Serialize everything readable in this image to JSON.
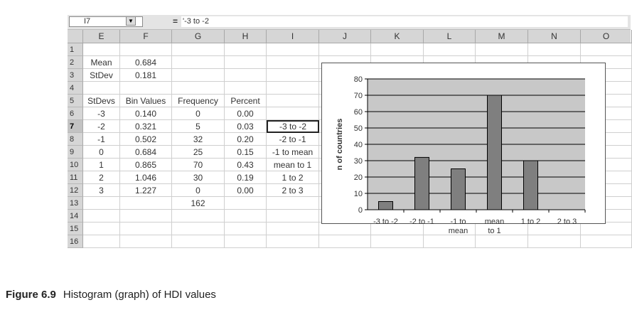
{
  "formula_bar": {
    "name_box": "I7",
    "equals": "=",
    "formula": "'-3 to -2"
  },
  "columns": [
    "E",
    "F",
    "G",
    "H",
    "I",
    "J",
    "K",
    "L",
    "M",
    "N",
    "O"
  ],
  "rows": [
    "1",
    "2",
    "3",
    "4",
    "5",
    "6",
    "7",
    "8",
    "9",
    "10",
    "11",
    "12",
    "13",
    "14",
    "15",
    "16"
  ],
  "active_row": "7",
  "cells": [
    {
      "r": 1,
      "c": 0,
      "v": "Mean"
    },
    {
      "r": 1,
      "c": 1,
      "v": "0.684"
    },
    {
      "r": 2,
      "c": 0,
      "v": "StDev"
    },
    {
      "r": 2,
      "c": 1,
      "v": "0.181"
    },
    {
      "r": 4,
      "c": 0,
      "v": "StDevs"
    },
    {
      "r": 4,
      "c": 1,
      "v": "Bin Values"
    },
    {
      "r": 4,
      "c": 2,
      "v": "Frequency"
    },
    {
      "r": 4,
      "c": 3,
      "v": "Percent"
    },
    {
      "r": 5,
      "c": 0,
      "v": "-3"
    },
    {
      "r": 5,
      "c": 1,
      "v": "0.140"
    },
    {
      "r": 5,
      "c": 2,
      "v": "0"
    },
    {
      "r": 5,
      "c": 3,
      "v": "0.00"
    },
    {
      "r": 6,
      "c": 0,
      "v": "-2"
    },
    {
      "r": 6,
      "c": 1,
      "v": "0.321"
    },
    {
      "r": 6,
      "c": 2,
      "v": "5"
    },
    {
      "r": 6,
      "c": 3,
      "v": "0.03"
    },
    {
      "r": 6,
      "c": 4,
      "v": "-3 to -2"
    },
    {
      "r": 7,
      "c": 0,
      "v": "-1"
    },
    {
      "r": 7,
      "c": 1,
      "v": "0.502"
    },
    {
      "r": 7,
      "c": 2,
      "v": "32"
    },
    {
      "r": 7,
      "c": 3,
      "v": "0.20"
    },
    {
      "r": 7,
      "c": 4,
      "v": "-2 to -1"
    },
    {
      "r": 8,
      "c": 0,
      "v": "0"
    },
    {
      "r": 8,
      "c": 1,
      "v": "0.684"
    },
    {
      "r": 8,
      "c": 2,
      "v": "25"
    },
    {
      "r": 8,
      "c": 3,
      "v": "0.15"
    },
    {
      "r": 8,
      "c": 4,
      "v": "-1 to mean"
    },
    {
      "r": 9,
      "c": 0,
      "v": "1"
    },
    {
      "r": 9,
      "c": 1,
      "v": "0.865"
    },
    {
      "r": 9,
      "c": 2,
      "v": "70"
    },
    {
      "r": 9,
      "c": 3,
      "v": "0.43"
    },
    {
      "r": 9,
      "c": 4,
      "v": "mean to 1"
    },
    {
      "r": 10,
      "c": 0,
      "v": "2"
    },
    {
      "r": 10,
      "c": 1,
      "v": "1.046"
    },
    {
      "r": 10,
      "c": 2,
      "v": "30"
    },
    {
      "r": 10,
      "c": 3,
      "v": "0.19"
    },
    {
      "r": 10,
      "c": 4,
      "v": "1 to 2"
    },
    {
      "r": 11,
      "c": 0,
      "v": "3"
    },
    {
      "r": 11,
      "c": 1,
      "v": "1.227"
    },
    {
      "r": 11,
      "c": 2,
      "v": "0"
    },
    {
      "r": 11,
      "c": 3,
      "v": "0.00"
    },
    {
      "r": 11,
      "c": 4,
      "v": "2 to 3"
    },
    {
      "r": 12,
      "c": 2,
      "v": "162"
    }
  ],
  "selected_cell": {
    "r": 6,
    "c": 4
  },
  "chart_data": {
    "type": "bar",
    "categories": [
      "-3 to -2",
      "-2 to -1",
      "-1 to mean",
      "mean to 1",
      "1 to 2",
      "2 to 3"
    ],
    "category_lines": [
      [
        "-3 to -2"
      ],
      [
        "-2 to -1"
      ],
      [
        "-1 to",
        "mean"
      ],
      [
        "mean",
        "to 1"
      ],
      [
        "1 to 2"
      ],
      [
        "2 to 3"
      ]
    ],
    "values": [
      5,
      32,
      25,
      70,
      30,
      0
    ],
    "ylabel": "n of countries",
    "ylim": [
      0,
      80
    ],
    "yticks": [
      0,
      10,
      20,
      30,
      40,
      50,
      60,
      70,
      80
    ],
    "grid": true,
    "plot_color": "#c8c8c8",
    "bar_color": "#7f7f7f"
  },
  "caption": {
    "label": "Figure 6.9",
    "text": "Histogram (graph) of HDI values"
  }
}
